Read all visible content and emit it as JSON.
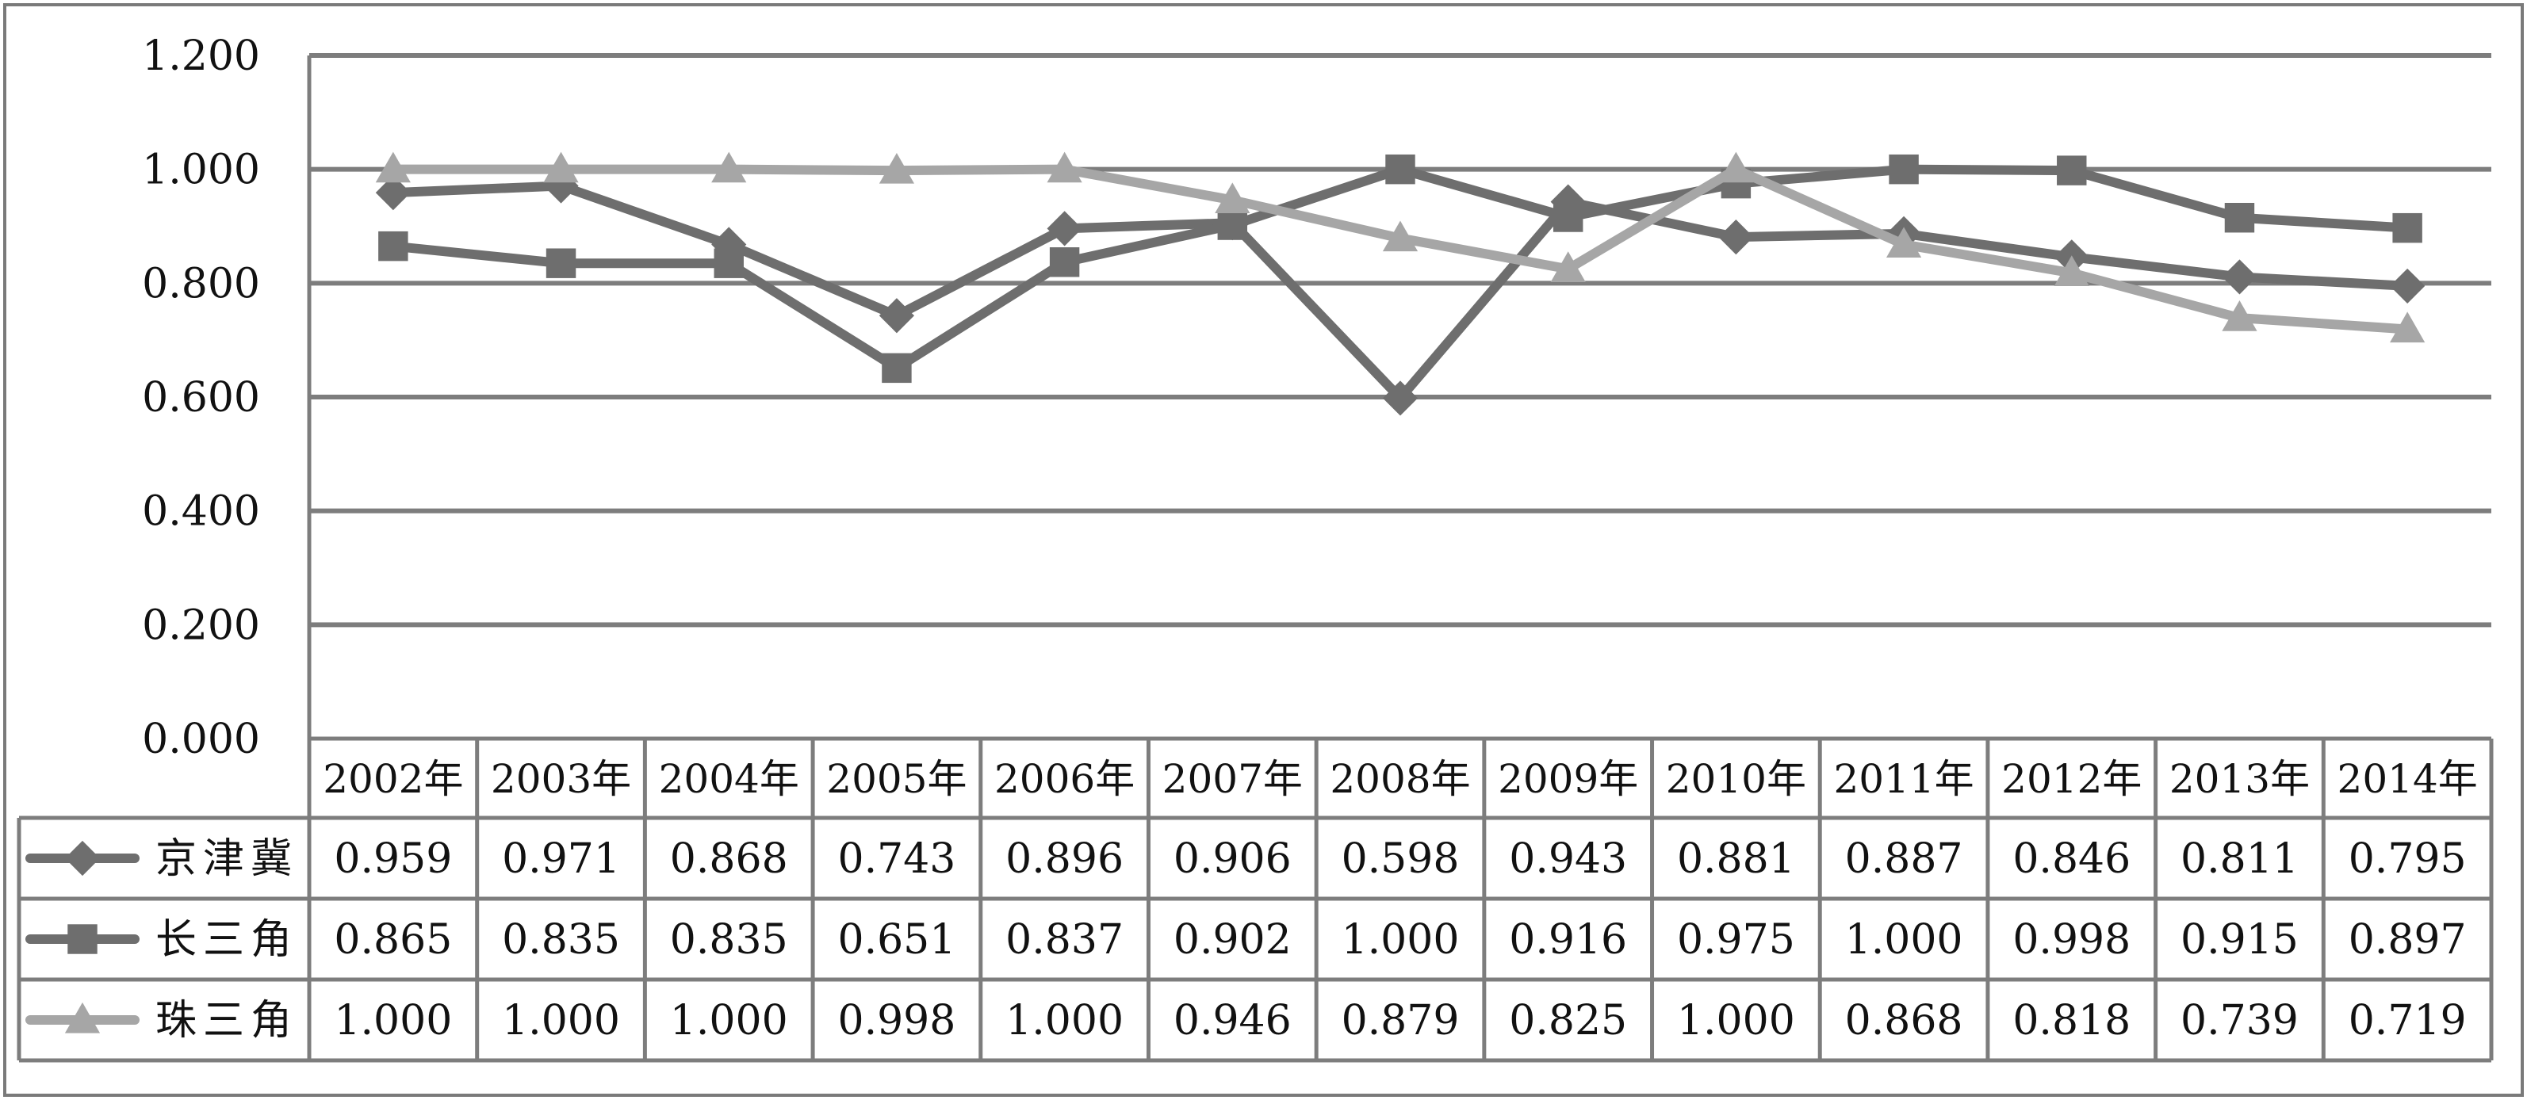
{
  "chart_data": {
    "type": "line",
    "title": "",
    "xlabel": "",
    "ylabel": "",
    "ylim": [
      0,
      1.2
    ],
    "yticks": [
      "0.000",
      "0.200",
      "0.400",
      "0.600",
      "0.800",
      "1.000",
      "1.200"
    ],
    "categories": [
      "2002年",
      "2003年",
      "2004年",
      "2005年",
      "2006年",
      "2007年",
      "2008年",
      "2009年",
      "2010年",
      "2011年",
      "2012年",
      "2013年",
      "2014年"
    ],
    "grid": true,
    "legend": "data-table-left",
    "series": [
      {
        "name": "京津冀",
        "marker": "diamond",
        "color": "#6e6e6e",
        "values": [
          0.959,
          0.971,
          0.868,
          0.743,
          0.896,
          0.906,
          0.598,
          0.943,
          0.881,
          0.887,
          0.846,
          0.811,
          0.795
        ],
        "labels": [
          "0.959",
          "0.971",
          "0.868",
          "0.743",
          "0.896",
          "0.906",
          "0.598",
          "0.943",
          "0.881",
          "0.887",
          "0.846",
          "0.811",
          "0.795"
        ]
      },
      {
        "name": "长三角",
        "marker": "square",
        "color": "#6e6e6e",
        "values": [
          0.865,
          0.835,
          0.835,
          0.651,
          0.837,
          0.902,
          1.0,
          0.916,
          0.975,
          1.0,
          0.998,
          0.915,
          0.897
        ],
        "labels": [
          "0.865",
          "0.835",
          "0.835",
          "0.651",
          "0.837",
          "0.902",
          "1.000",
          "0.916",
          "0.975",
          "1.000",
          "0.998",
          "0.915",
          "0.897"
        ]
      },
      {
        "name": "珠三角",
        "marker": "triangle",
        "color": "#a6a6a6",
        "values": [
          1.0,
          1.0,
          1.0,
          0.998,
          1.0,
          0.946,
          0.879,
          0.825,
          1.0,
          0.868,
          0.818,
          0.739,
          0.719
        ],
        "labels": [
          "1.000",
          "1.000",
          "1.000",
          "0.998",
          "1.000",
          "0.946",
          "0.879",
          "0.825",
          "1.000",
          "0.868",
          "0.818",
          "0.739",
          "0.719"
        ]
      }
    ]
  }
}
